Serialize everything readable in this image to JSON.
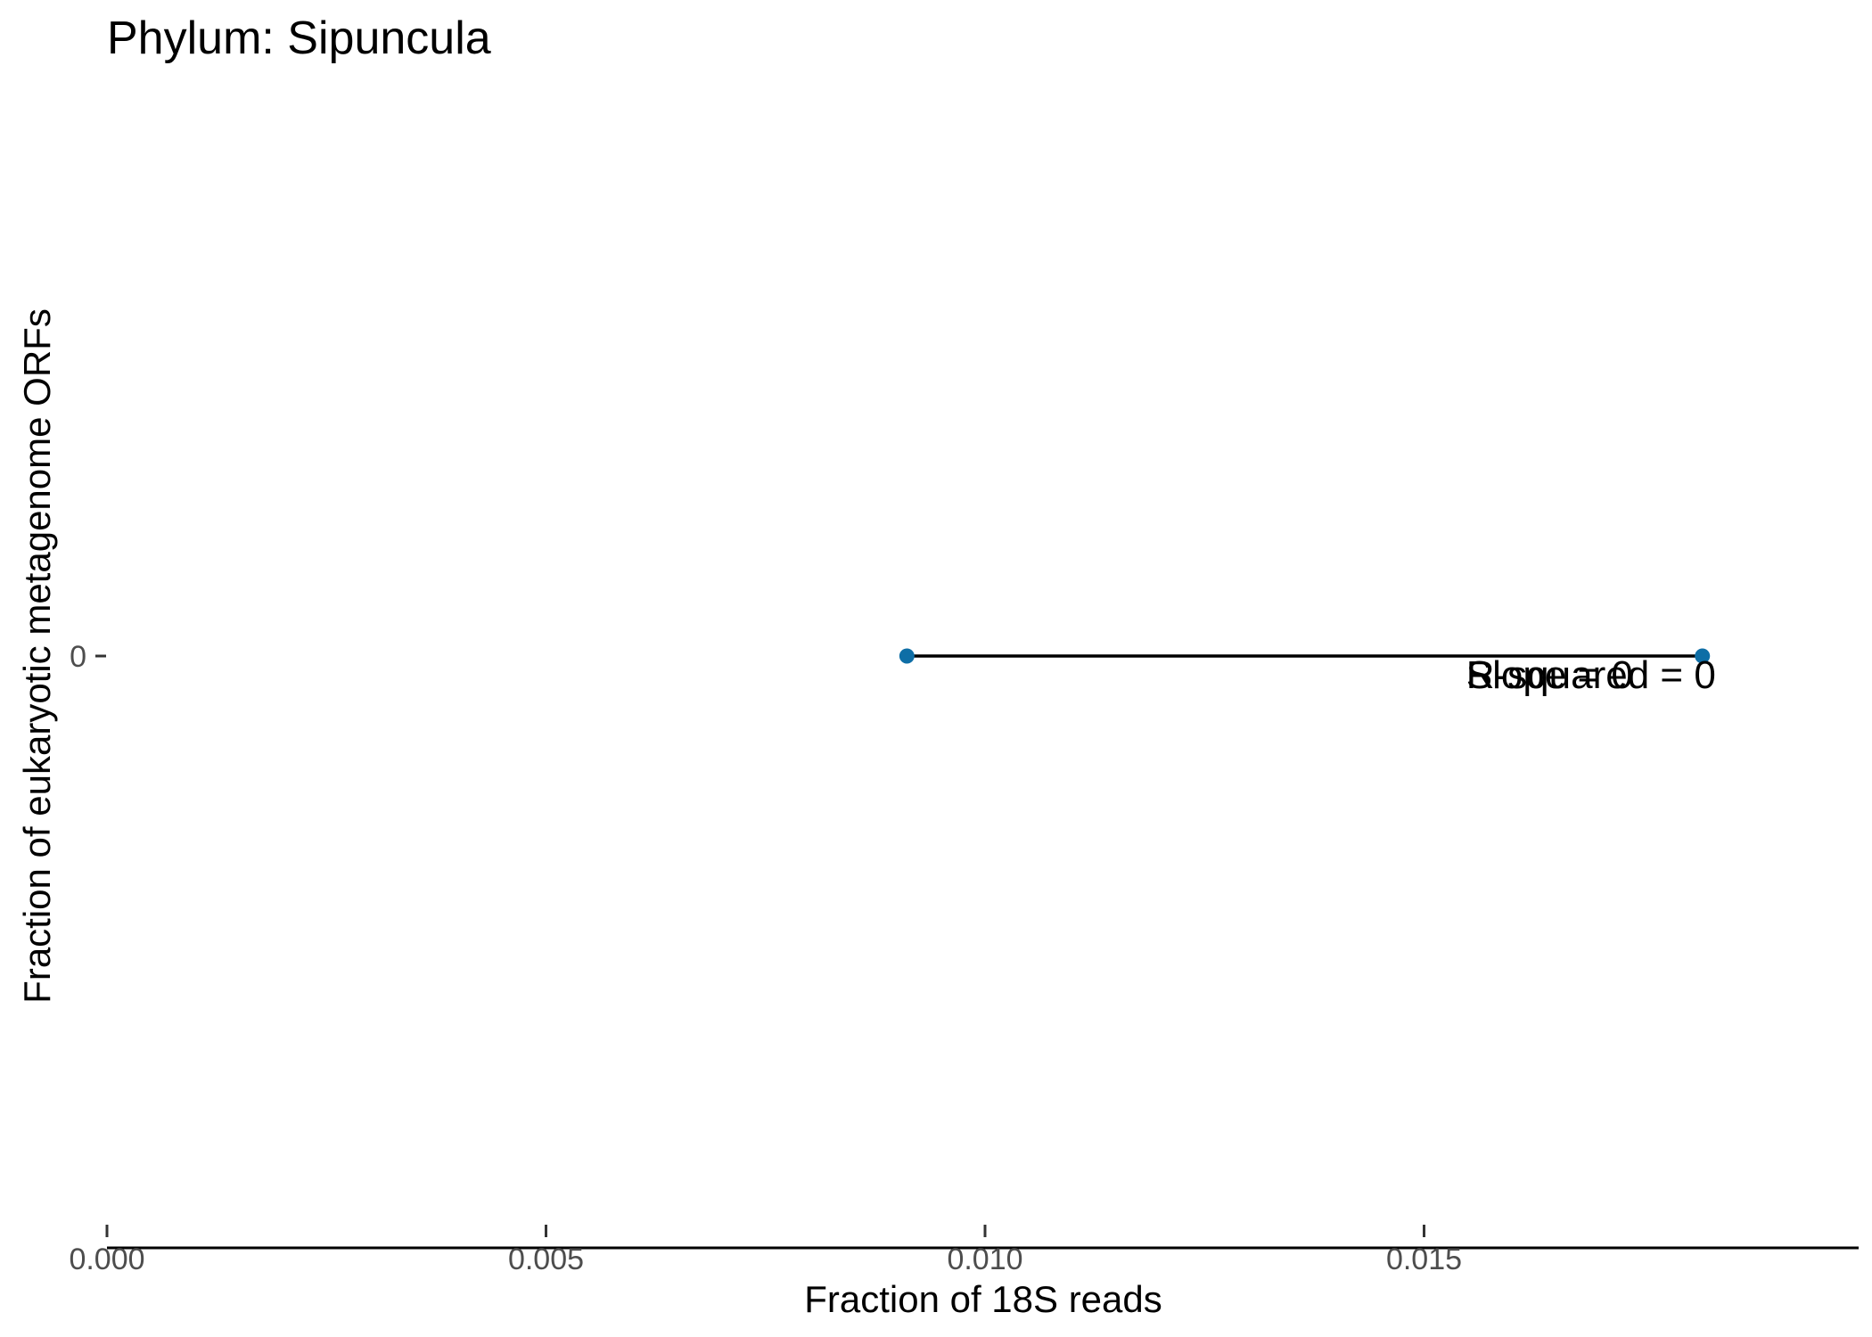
{
  "chart_data": {
    "type": "scatter",
    "title": "Phylum:  Sipuncula",
    "xlabel": "Fraction of 18S reads",
    "ylabel": "Fraction of eukaryotic metagenome ORFs",
    "xlim": [
      0,
      0.02
    ],
    "x_ticks": [
      0.0,
      0.005,
      0.01,
      0.015
    ],
    "x_tick_labels": [
      "0.000",
      "0.005",
      "0.010",
      "0.015"
    ],
    "y_ticks": [
      0
    ],
    "y_tick_labels": [
      "0"
    ],
    "points": [
      {
        "x": 0.00911,
        "y": 0
      },
      {
        "x": 0.01817,
        "y": 0
      }
    ],
    "fit_line": {
      "x_start": 0.00911,
      "x_end": 0.01817,
      "y": 0
    },
    "annotations": [
      {
        "text": "Slope =  0",
        "x": 0.0155,
        "y": 0
      },
      {
        "text": "R-squared =  0",
        "x": 0.0155,
        "y": 0
      }
    ],
    "point_color": "#0e6ea6",
    "line_color": "#000000",
    "grid": false,
    "legend": "none"
  }
}
